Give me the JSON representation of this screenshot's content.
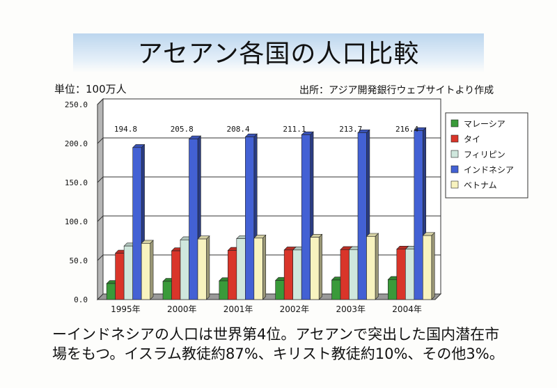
{
  "title": "アセアン各国の人口比較",
  "unit_label": "単位：100万人",
  "source_label": "出所：アジア開発銀行ウェブサイトより作成",
  "note_lines": [
    "ーインドネシアの人口は世界第4位。アセアンで突出した国内潜在市",
    "場をもつ。イスラム教徒約87%、キリスト教徒約10%、その他3%。"
  ],
  "chart_data": {
    "type": "bar",
    "title": "アセアン各国の人口比較",
    "ylabel": "単位：100万人",
    "xlabel": "",
    "ylim": [
      0,
      250
    ],
    "yticks": [
      "0.0",
      "50.0",
      "100.0",
      "150.0",
      "200.0",
      "250.0"
    ],
    "grid": true,
    "legend_position": "right",
    "categories": [
      "1995年",
      "2000年",
      "2001年",
      "2002年",
      "2003年",
      "2004年"
    ],
    "series": [
      {
        "name": "マレーシア",
        "color": "#3a9a3a",
        "values": [
          20.5,
          23.3,
          24.0,
          24.5,
          25.0,
          25.6
        ]
      },
      {
        "name": "タイ",
        "color": "#d9352a",
        "values": [
          59.4,
          62.4,
          63.0,
          63.5,
          64.0,
          64.5
        ]
      },
      {
        "name": "フィリピン",
        "color": "#cfe7dd",
        "values": [
          68.6,
          76.5,
          78.0,
          63.5,
          64.0,
          64.5
        ]
      },
      {
        "name": "インドネシア",
        "color": "#4361d4",
        "values": [
          194.8,
          205.8,
          208.4,
          211.1,
          213.7,
          216.4
        ]
      },
      {
        "name": "ベトナム",
        "color": "#f8f3bf",
        "values": [
          72.0,
          77.6,
          78.7,
          79.7,
          80.9,
          82.0
        ]
      }
    ],
    "data_labels": [
      "194.8",
      "205.8",
      "208.4",
      "211.1",
      "213.7",
      "216.4"
    ]
  }
}
